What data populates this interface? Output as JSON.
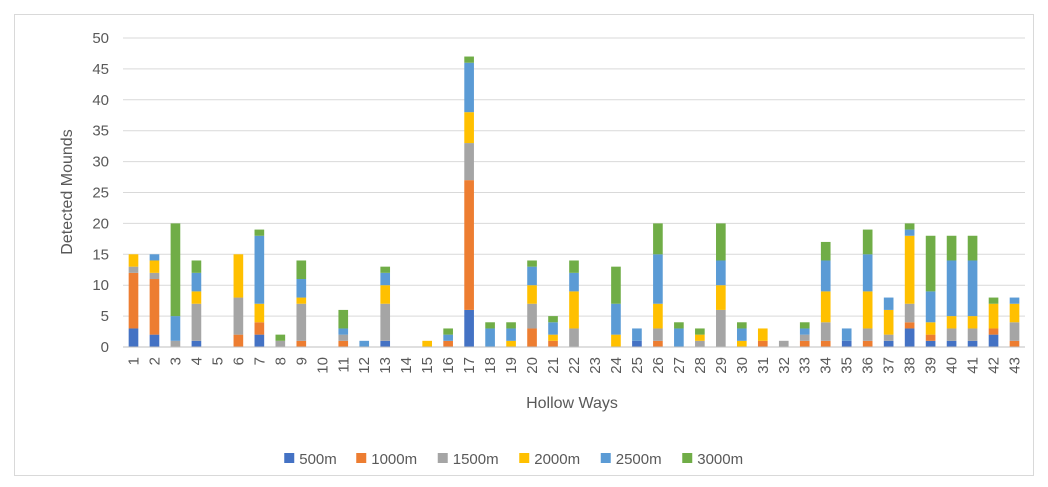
{
  "chart_data": {
    "type": "bar",
    "stacked": true,
    "title": "",
    "xlabel": "Hollow Ways",
    "ylabel": "Detected Mounds",
    "ylim": [
      0,
      50
    ],
    "yticks": [
      0,
      5,
      10,
      15,
      20,
      25,
      30,
      35,
      40,
      45,
      50
    ],
    "grid": true,
    "legend_position": "bottom",
    "categories": [
      "1",
      "2",
      "3",
      "4",
      "5",
      "6",
      "7",
      "8",
      "9",
      "10",
      "11",
      "12",
      "13",
      "14",
      "15",
      "16",
      "17",
      "18",
      "19",
      "20",
      "21",
      "22",
      "23",
      "24",
      "25",
      "26",
      "27",
      "28",
      "29",
      "30",
      "31",
      "32",
      "33",
      "34",
      "35",
      "36",
      "37",
      "38",
      "39",
      "40",
      "41",
      "42",
      "43"
    ],
    "series": [
      {
        "name": "500m",
        "color": "#4472C4",
        "values": [
          3,
          2,
          0,
          1,
          0,
          0,
          2,
          0,
          0,
          0,
          0,
          0,
          1,
          0,
          0,
          0,
          6,
          0,
          0,
          0,
          0,
          0,
          0,
          0,
          1,
          0,
          0,
          0,
          0,
          0,
          0,
          0,
          0,
          0,
          1,
          0,
          1,
          3,
          1,
          1,
          1,
          2,
          0
        ]
      },
      {
        "name": "1000m",
        "color": "#ED7D31",
        "values": [
          9,
          9,
          0,
          0,
          0,
          2,
          2,
          0,
          1,
          0,
          1,
          0,
          0,
          0,
          0,
          1,
          21,
          0,
          0,
          3,
          1,
          0,
          0,
          0,
          0,
          1,
          0,
          0,
          0,
          0,
          1,
          0,
          1,
          1,
          0,
          1,
          0,
          1,
          1,
          0,
          0,
          1,
          1
        ]
      },
      {
        "name": "1500m",
        "color": "#A5A5A5",
        "values": [
          1,
          1,
          1,
          6,
          0,
          6,
          0,
          1,
          6,
          0,
          1,
          0,
          6,
          0,
          0,
          0,
          6,
          0,
          0,
          4,
          0,
          3,
          0,
          0,
          0,
          2,
          0,
          1,
          6,
          0,
          0,
          1,
          1,
          3,
          0,
          2,
          1,
          3,
          0,
          2,
          2,
          0,
          3
        ]
      },
      {
        "name": "2000m",
        "color": "#FFC000",
        "values": [
          2,
          2,
          0,
          2,
          0,
          7,
          3,
          0,
          1,
          0,
          0,
          0,
          3,
          0,
          1,
          0,
          5,
          0,
          1,
          3,
          1,
          6,
          0,
          2,
          0,
          4,
          0,
          1,
          4,
          1,
          2,
          0,
          0,
          5,
          0,
          6,
          4,
          11,
          2,
          2,
          2,
          4,
          3
        ]
      },
      {
        "name": "2500m",
        "color": "#5B9BD5",
        "values": [
          0,
          1,
          4,
          3,
          0,
          0,
          11,
          0,
          3,
          0,
          1,
          1,
          2,
          0,
          0,
          1,
          8,
          3,
          2,
          3,
          2,
          3,
          0,
          5,
          2,
          8,
          3,
          0,
          4,
          2,
          0,
          0,
          1,
          5,
          2,
          6,
          2,
          1,
          5,
          9,
          9,
          0,
          1
        ]
      },
      {
        "name": "3000m",
        "color": "#70AD47",
        "values": [
          0,
          0,
          15,
          2,
          0,
          0,
          1,
          1,
          3,
          0,
          3,
          0,
          1,
          0,
          0,
          1,
          1,
          1,
          1,
          1,
          1,
          2,
          0,
          6,
          0,
          5,
          1,
          1,
          6,
          1,
          0,
          0,
          1,
          3,
          0,
          4,
          0,
          1,
          9,
          4,
          4,
          1,
          0
        ]
      }
    ]
  }
}
